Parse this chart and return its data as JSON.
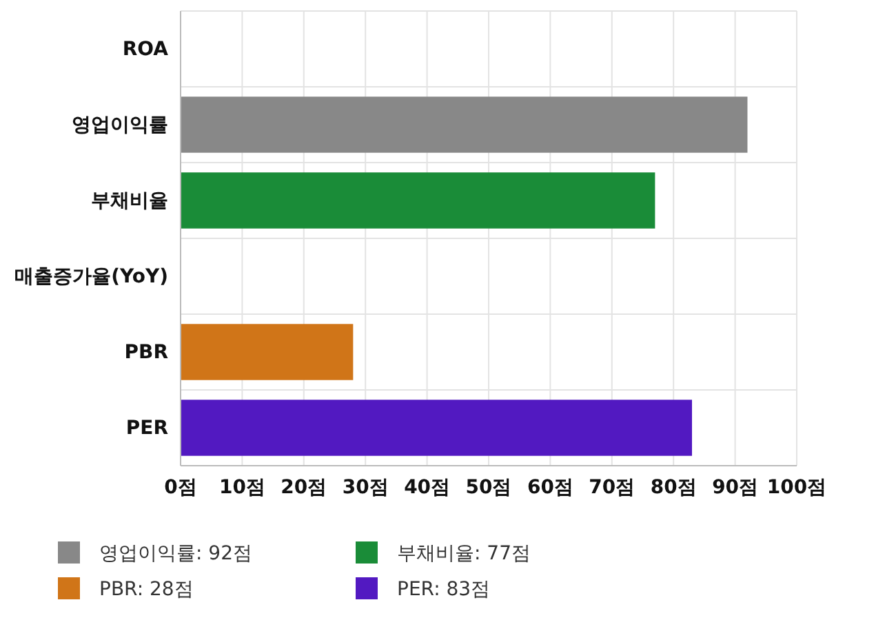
{
  "chart_data": {
    "type": "bar",
    "orientation": "horizontal",
    "categories": [
      "ROA",
      "영업이익률",
      "부채비율",
      "매출증가율(YoY)",
      "PBR",
      "PER"
    ],
    "series": [
      {
        "name": "영업이익률: 92점",
        "color": "#888888",
        "values": [
          null,
          92,
          null,
          null,
          null,
          null
        ]
      },
      {
        "name": "부채비율: 77점",
        "color": "#1a8c38",
        "values": [
          null,
          null,
          77,
          null,
          null,
          null
        ]
      },
      {
        "name": "PBR: 28점",
        "color": "#d07518",
        "values": [
          null,
          null,
          null,
          null,
          28,
          null
        ]
      },
      {
        "name": "PER: 83점",
        "color": "#5219c1",
        "values": [
          null,
          null,
          null,
          null,
          null,
          83
        ]
      }
    ],
    "xlim": [
      0,
      100
    ],
    "xticks": [
      {
        "value": 0,
        "label": "0점"
      },
      {
        "value": 10,
        "label": "10점"
      },
      {
        "value": 20,
        "label": "20점"
      },
      {
        "value": 30,
        "label": "30점"
      },
      {
        "value": 40,
        "label": "40점"
      },
      {
        "value": 50,
        "label": "50점"
      },
      {
        "value": 60,
        "label": "60점"
      },
      {
        "value": 70,
        "label": "70점"
      },
      {
        "value": 80,
        "label": "80점"
      },
      {
        "value": 90,
        "label": "90점"
      },
      {
        "value": 100,
        "label": "100점"
      }
    ],
    "grid": true,
    "legend": "bottom"
  }
}
